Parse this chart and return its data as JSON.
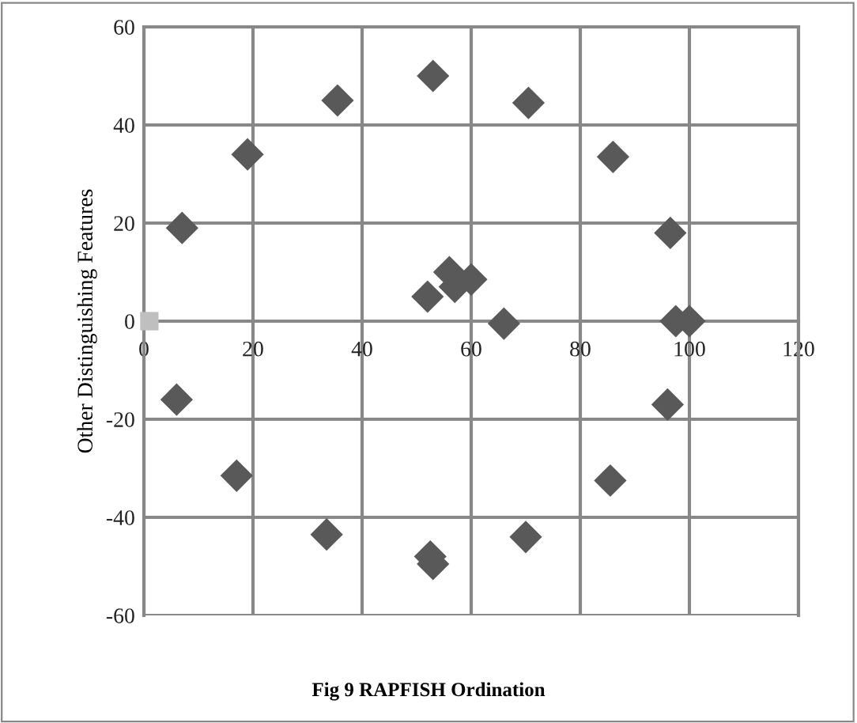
{
  "chart_data": {
    "type": "scatter",
    "title": "Fig 9 RAPFISH Ordination",
    "ylabel": "Other Distinguishing Features",
    "series": [
      {
        "color": "#595959",
        "marker": "diamond",
        "x": [
          7,
          19,
          35.5,
          53,
          70.5,
          86,
          96.5,
          52,
          56,
          57,
          60,
          66,
          97.5,
          100,
          6,
          17,
          33.5,
          52.5,
          53,
          70,
          85.5,
          96
        ],
        "values": [
          19,
          34,
          45,
          50,
          44.5,
          33.5,
          18,
          5,
          10,
          7,
          8.5,
          -0.5,
          0,
          0,
          -16,
          -31.5,
          -43.5,
          -48,
          -49.5,
          -44,
          -32.5,
          -17
        ]
      },
      {
        "color": "#bfbfbf",
        "marker": "square",
        "x": [
          1
        ],
        "values": [
          0
        ]
      }
    ],
    "xlim": [
      0,
      120
    ],
    "xticks": [
      0,
      20,
      40,
      60,
      80,
      100,
      120
    ],
    "ylim": [
      -60,
      60
    ],
    "yticks": [
      -60,
      -40,
      -20,
      0,
      20,
      40,
      60
    ],
    "grid": true,
    "legend": false
  }
}
